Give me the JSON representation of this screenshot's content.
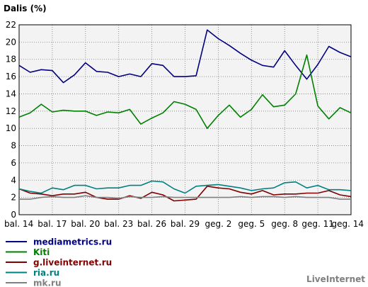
{
  "chart_data": {
    "type": "line",
    "title": "Dalis (%)",
    "xlabel": "",
    "ylabel": "",
    "ylim": [
      0,
      22
    ],
    "yticks": [
      0,
      2,
      4,
      6,
      8,
      10,
      12,
      14,
      16,
      18,
      20,
      22
    ],
    "grid": true,
    "legend_position": "bottom-left",
    "x": [
      "bal. 14",
      "bal. 15",
      "bal. 16",
      "bal. 17",
      "bal. 18",
      "bal. 19",
      "bal. 20",
      "bal. 21",
      "bal. 22",
      "bal. 23",
      "bal. 24",
      "bal. 25",
      "bal. 26",
      "bal. 27",
      "bal. 28",
      "bal. 29",
      "bal. 30",
      "geg. 1",
      "geg. 2",
      "geg. 3",
      "geg. 4",
      "geg. 5",
      "geg. 6",
      "geg. 7",
      "geg. 8",
      "geg. 9",
      "geg. 10",
      "geg. 11",
      "geg. 12",
      "geg. 13",
      "geg. 14"
    ],
    "xtick_labels": [
      "bal. 14",
      "bal. 17",
      "bal. 20",
      "bal. 23",
      "bal. 26",
      "bal. 29",
      "geg. 2",
      "geg. 5",
      "geg. 8",
      "geg. 11",
      "geg. 14"
    ],
    "series": [
      {
        "name": "mediametrics.ru",
        "color": "#000080",
        "values": [
          17.3,
          16.5,
          16.8,
          16.7,
          15.3,
          16.2,
          17.6,
          16.6,
          16.5,
          16.0,
          16.3,
          16.0,
          17.5,
          17.3,
          16.0,
          16.0,
          16.1,
          21.4,
          20.4,
          19.6,
          18.7,
          17.9,
          17.3,
          17.1,
          19.0,
          17.3,
          15.7,
          17.4,
          19.5,
          18.8,
          18.3
        ]
      },
      {
        "name": "Kiti",
        "color": "#008000",
        "values": [
          11.3,
          11.8,
          12.8,
          11.9,
          12.1,
          12.0,
          12.0,
          11.5,
          11.9,
          11.8,
          12.2,
          10.5,
          11.2,
          11.8,
          13.1,
          12.8,
          12.2,
          10.0,
          11.5,
          12.7,
          11.3,
          12.2,
          13.9,
          12.5,
          12.7,
          14.0,
          18.5,
          12.6,
          11.1,
          12.4,
          11.8
        ]
      },
      {
        "name": "g.liveinternet.ru",
        "color": "#800000",
        "values": [
          3.0,
          2.5,
          2.4,
          2.2,
          2.4,
          2.4,
          2.6,
          2.0,
          1.8,
          1.8,
          2.2,
          1.9,
          2.6,
          2.3,
          1.6,
          1.7,
          1.8,
          3.3,
          3.1,
          3.0,
          2.6,
          2.4,
          2.8,
          2.3,
          2.4,
          2.4,
          2.5,
          2.5,
          2.8,
          2.3,
          2.1
        ]
      },
      {
        "name": "ria.ru",
        "color": "#008080",
        "values": [
          3.0,
          2.7,
          2.5,
          3.1,
          2.9,
          3.4,
          3.4,
          3.0,
          3.1,
          3.1,
          3.4,
          3.4,
          3.9,
          3.8,
          3.0,
          2.5,
          3.3,
          3.4,
          3.5,
          3.3,
          3.1,
          2.8,
          3.0,
          3.1,
          3.7,
          3.8,
          3.1,
          3.4,
          2.9,
          2.9,
          2.8
        ]
      },
      {
        "name": "mk.ru",
        "color": "#808080",
        "values": [
          1.8,
          1.8,
          2.0,
          2.1,
          2.0,
          2.0,
          2.2,
          2.0,
          2.0,
          1.9,
          2.1,
          2.0,
          2.0,
          2.1,
          2.0,
          2.0,
          2.0,
          2.0,
          2.0,
          2.0,
          2.1,
          2.0,
          2.1,
          2.1,
          2.0,
          2.1,
          2.0,
          2.0,
          2.0,
          1.8,
          1.8
        ]
      }
    ]
  },
  "brand": "LiveInternet"
}
